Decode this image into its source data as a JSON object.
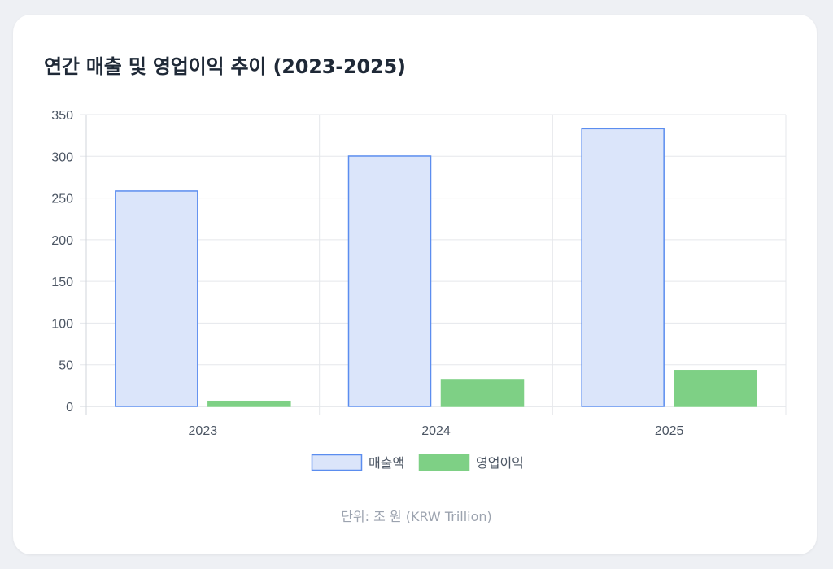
{
  "chart_data": {
    "type": "bar",
    "title": "연간 매출 및 영업이익 추이 (2023-2025)",
    "categories": [
      "2023",
      "2024",
      "2025"
    ],
    "series": [
      {
        "name": "매출액",
        "values": [
          258.9,
          300.8,
          333.6
        ],
        "fill": "#dbe5fa",
        "stroke": "#5b8def"
      },
      {
        "name": "영업이익",
        "values": [
          6.6,
          32.7,
          43.6
        ],
        "fill": "#7ed085",
        "stroke": "#7ed085"
      }
    ],
    "ylim": [
      0,
      350
    ],
    "yticks": [
      0,
      50,
      100,
      150,
      200,
      250,
      300,
      350
    ],
    "grid": true,
    "legend": "bottom",
    "unit_note": "단위: 조 원 (KRW Trillion)"
  },
  "colors": {
    "grid": "#e5e7eb",
    "axis": "#d1d5db",
    "tick_text": "#4b5563",
    "title": "#1f2937",
    "note": "#9ca3af"
  }
}
